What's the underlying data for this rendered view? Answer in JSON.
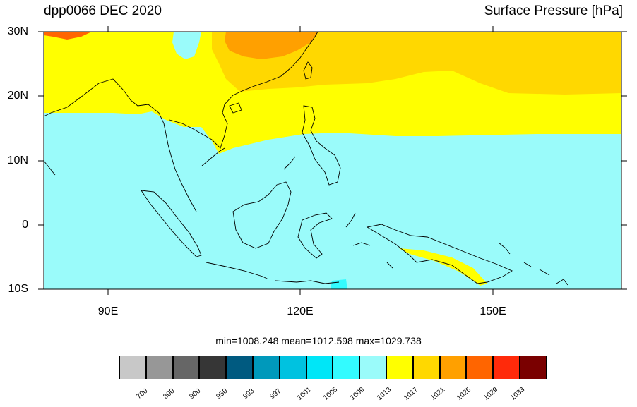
{
  "title": {
    "left": "dpp0066 DEC 2020",
    "right": "Surface Pressure [hPa]"
  },
  "lat_labels": [
    "30N",
    "20N",
    "10N",
    "0",
    "10S"
  ],
  "lon_labels": [
    "90E",
    "120E",
    "150E"
  ],
  "stats": "min=1008.248  mean=1012.598  max=1029.738",
  "colorbar": {
    "colors": [
      "#c8c8c8",
      "#979797",
      "#666666",
      "#363636",
      "#005a80",
      "#0099bb",
      "#00c2e0",
      "#00e6f7",
      "#33fbff",
      "#9afbfa",
      "#ffff00",
      "#ffd800",
      "#ffa000",
      "#ff6500",
      "#ff2a0a",
      "#7a0000"
    ],
    "labels": [
      "700",
      "800",
      "900",
      "950",
      "993",
      "997",
      "1001",
      "1005",
      "1009",
      "1013",
      "1017",
      "1021",
      "1025",
      "1029",
      "1033"
    ]
  },
  "map_colors": {
    "low": "#9afbfa",
    "mid": "#ffff00",
    "high": "#ffd800",
    "higher": "#ffa000",
    "highest": "#ff6500",
    "peak": "#ff2a0a"
  }
}
